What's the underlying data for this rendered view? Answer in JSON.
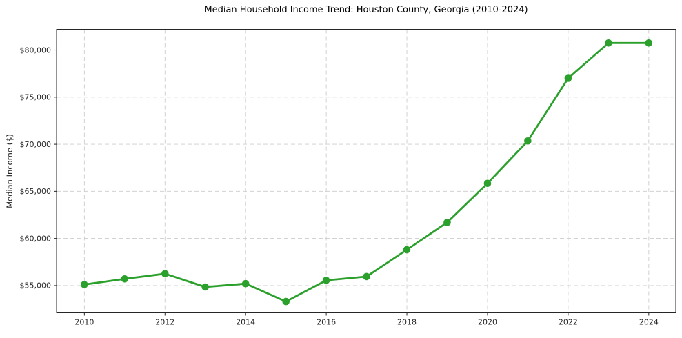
{
  "chart_data": {
    "type": "line",
    "title": "Median Household Income Trend: Houston County, Georgia (2010-2024)",
    "xlabel": "",
    "ylabel": "Median Income ($)",
    "x": [
      2010,
      2011,
      2012,
      2013,
      2014,
      2015,
      2016,
      2017,
      2018,
      2019,
      2020,
      2021,
      2022,
      2023,
      2024
    ],
    "series": [
      {
        "name": "Median Household Income",
        "values": [
          55100,
          55700,
          56250,
          54850,
          55200,
          53300,
          55550,
          55950,
          58800,
          61700,
          65850,
          70350,
          77000,
          80750,
          80750
        ]
      }
    ],
    "xticks": [
      2010,
      2012,
      2014,
      2016,
      2018,
      2020,
      2022,
      2024
    ],
    "xtick_labels": [
      "2010",
      "2012",
      "2014",
      "2016",
      "2018",
      "2020",
      "2022",
      "2024"
    ],
    "yticks": [
      55000,
      60000,
      65000,
      70000,
      75000,
      80000
    ],
    "ytick_labels": [
      "$55,000",
      "$60,000",
      "$65,000",
      "$70,000",
      "$75,000",
      "$80,000"
    ],
    "xlim": [
      2009.31,
      2024.67
    ],
    "ylim": [
      52100,
      82200
    ],
    "grid": true,
    "grid_style": "dashed",
    "legend_position": "none",
    "colors": {
      "line": "#2ca02c",
      "marker": "#2ca02c",
      "grid": "#cccccc",
      "spine": "#262626",
      "tick_text": "#262626",
      "background": "#ffffff"
    }
  }
}
